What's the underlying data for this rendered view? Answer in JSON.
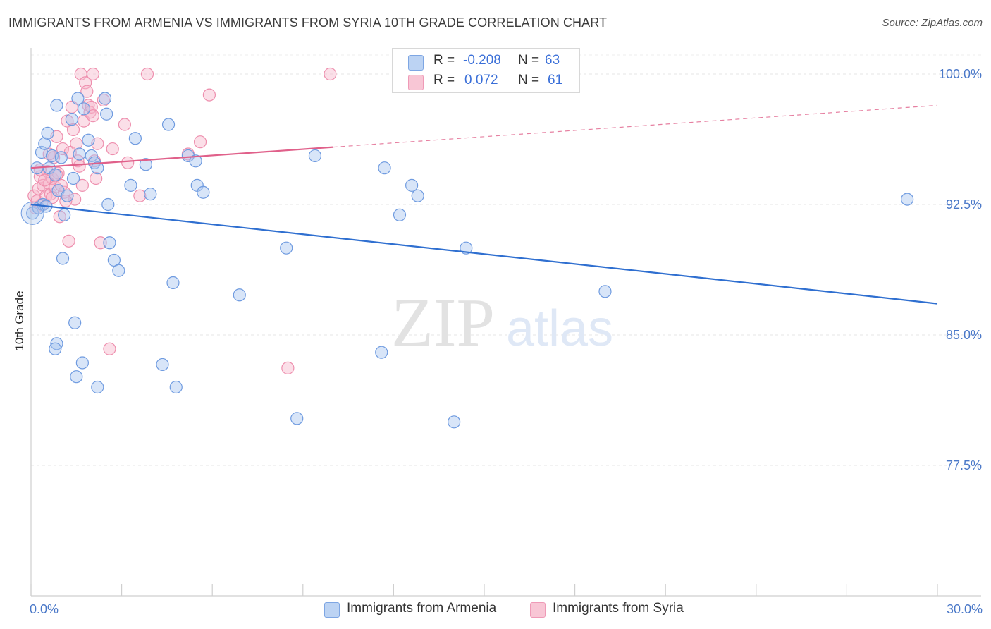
{
  "header": {
    "title": "IMMIGRANTS FROM ARMENIA VS IMMIGRANTS FROM SYRIA 10TH GRADE CORRELATION CHART",
    "source": "Source: ZipAtlas.com"
  },
  "stats": {
    "r_label": "R =",
    "n_label": "N =",
    "armenia": {
      "r": "-0.208",
      "n": "63"
    },
    "syria": {
      "r": "0.072",
      "n": "61"
    }
  },
  "legend": {
    "armenia": "Immigrants from Armenia",
    "syria": "Immigrants from Syria"
  },
  "watermark": {
    "zip": "ZIP",
    "atlas": "atlas"
  },
  "colors": {
    "armenia_fill": "#a9c6ef",
    "armenia_stroke": "#6f9be0",
    "armenia_line": "#2f6fd0",
    "syria_fill": "#f6b9cc",
    "syria_stroke": "#ee8fae",
    "syria_line": "#e0608a",
    "tick_text": "#4a78c8"
  },
  "chart_data": {
    "type": "scatter",
    "title": "IMMIGRANTS FROM ARMENIA VS IMMIGRANTS FROM SYRIA 10TH GRADE CORRELATION CHART",
    "xlabel": "",
    "ylabel": "10th Grade",
    "xlim": [
      0,
      30
    ],
    "ylim": [
      70,
      101.5
    ],
    "x_tick_labels": [
      "0.0%",
      "30.0%"
    ],
    "y_ticks": [
      77.5,
      85.0,
      92.5,
      100.0
    ],
    "y_tick_labels": [
      "77.5%",
      "85.0%",
      "92.5%",
      "100.0%"
    ],
    "grid": true,
    "series": [
      {
        "name": "Immigrants from Armenia",
        "r": -0.208,
        "n": 63,
        "trend": {
          "x": [
            0,
            30
          ],
          "y": [
            92.5,
            86.8
          ]
        },
        "points": [
          [
            0.05,
            92.0
          ],
          [
            0.2,
            94.6
          ],
          [
            0.25,
            92.3
          ],
          [
            0.35,
            95.5
          ],
          [
            0.4,
            92.5
          ],
          [
            0.45,
            96.0
          ],
          [
            0.5,
            92.4
          ],
          [
            0.55,
            96.6
          ],
          [
            0.6,
            94.6
          ],
          [
            0.7,
            95.3
          ],
          [
            0.8,
            94.2
          ],
          [
            0.85,
            98.2
          ],
          [
            0.9,
            93.3
          ],
          [
            1.0,
            95.2
          ],
          [
            1.05,
            89.4
          ],
          [
            1.1,
            91.9
          ],
          [
            1.2,
            93.0
          ],
          [
            1.35,
            97.4
          ],
          [
            1.4,
            94.0
          ],
          [
            1.55,
            98.6
          ],
          [
            1.6,
            95.4
          ],
          [
            1.75,
            98.0
          ],
          [
            1.9,
            96.2
          ],
          [
            2.0,
            95.3
          ],
          [
            2.1,
            94.9
          ],
          [
            2.2,
            94.6
          ],
          [
            2.45,
            98.6
          ],
          [
            2.5,
            97.7
          ],
          [
            2.55,
            92.5
          ],
          [
            2.6,
            90.3
          ],
          [
            2.75,
            89.3
          ],
          [
            2.9,
            88.7
          ],
          [
            3.3,
            93.6
          ],
          [
            3.45,
            96.3
          ],
          [
            3.8,
            94.8
          ],
          [
            3.95,
            93.1
          ],
          [
            4.55,
            97.1
          ],
          [
            4.7,
            88.0
          ],
          [
            5.2,
            95.3
          ],
          [
            5.45,
            95.0
          ],
          [
            5.5,
            93.6
          ],
          [
            5.7,
            93.2
          ],
          [
            6.9,
            87.3
          ],
          [
            8.45,
            90.0
          ],
          [
            9.4,
            95.3
          ],
          [
            11.7,
            94.6
          ],
          [
            12.2,
            91.9
          ],
          [
            12.6,
            93.6
          ],
          [
            12.8,
            93.0
          ],
          [
            14.4,
            90.0
          ],
          [
            19.0,
            87.5
          ],
          [
            29.0,
            92.8
          ],
          [
            0.85,
            84.5
          ],
          [
            0.8,
            84.2
          ],
          [
            1.45,
            85.7
          ],
          [
            1.7,
            83.4
          ],
          [
            1.5,
            82.6
          ],
          [
            2.2,
            82.0
          ],
          [
            4.35,
            83.3
          ],
          [
            4.8,
            82.0
          ],
          [
            8.8,
            80.2
          ],
          [
            11.6,
            84.0
          ],
          [
            14.0,
            80.0
          ]
        ]
      },
      {
        "name": "Immigrants from Syria",
        "r": 0.072,
        "n": 61,
        "trend": {
          "x": [
            0,
            10
          ],
          "y": [
            94.6,
            95.8
          ],
          "dashed_to": [
            30,
            98.2
          ]
        },
        "points": [
          [
            0.1,
            93.0
          ],
          [
            0.15,
            92.3
          ],
          [
            0.2,
            92.7
          ],
          [
            0.25,
            93.4
          ],
          [
            0.3,
            94.1
          ],
          [
            0.35,
            92.5
          ],
          [
            0.4,
            93.6
          ],
          [
            0.5,
            93.0
          ],
          [
            0.55,
            94.4
          ],
          [
            0.6,
            93.7
          ],
          [
            0.65,
            93.1
          ],
          [
            0.7,
            94.0
          ],
          [
            0.75,
            95.2
          ],
          [
            0.8,
            93.5
          ],
          [
            0.85,
            96.4
          ],
          [
            0.9,
            94.3
          ],
          [
            0.95,
            91.8
          ],
          [
            1.05,
            95.7
          ],
          [
            1.1,
            93.2
          ],
          [
            1.2,
            97.3
          ],
          [
            1.25,
            90.4
          ],
          [
            1.3,
            95.5
          ],
          [
            1.35,
            98.1
          ],
          [
            1.4,
            96.8
          ],
          [
            1.45,
            92.8
          ],
          [
            1.5,
            96.0
          ],
          [
            1.55,
            95.0
          ],
          [
            1.65,
            100.0
          ],
          [
            1.7,
            93.6
          ],
          [
            1.75,
            97.3
          ],
          [
            1.8,
            99.5
          ],
          [
            1.85,
            99.0
          ],
          [
            1.9,
            98.2
          ],
          [
            1.95,
            97.8
          ],
          [
            2.0,
            98.1
          ],
          [
            2.05,
            100.0
          ],
          [
            2.1,
            95.0
          ],
          [
            2.15,
            94.0
          ],
          [
            2.2,
            96.0
          ],
          [
            2.4,
            98.5
          ],
          [
            2.3,
            90.3
          ],
          [
            2.6,
            84.2
          ],
          [
            2.7,
            95.7
          ],
          [
            3.1,
            97.1
          ],
          [
            3.2,
            94.9
          ],
          [
            3.6,
            93.0
          ],
          [
            3.85,
            100.0
          ],
          [
            5.2,
            95.4
          ],
          [
            5.6,
            96.1
          ],
          [
            5.9,
            98.8
          ],
          [
            8.5,
            83.1
          ],
          [
            9.9,
            100.0
          ],
          [
            0.3,
            94.5
          ],
          [
            0.45,
            93.9
          ],
          [
            0.6,
            95.4
          ],
          [
            0.7,
            92.9
          ],
          [
            0.85,
            94.2
          ],
          [
            1.0,
            93.6
          ],
          [
            1.15,
            92.7
          ],
          [
            1.6,
            94.7
          ],
          [
            2.05,
            97.6
          ]
        ]
      }
    ]
  }
}
